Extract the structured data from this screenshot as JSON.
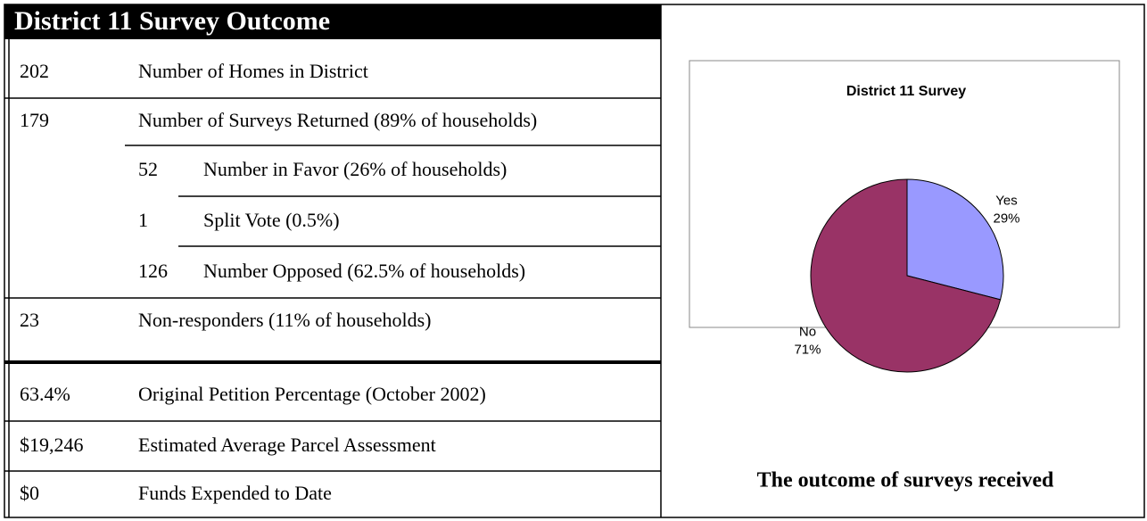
{
  "table": {
    "title": "District 11 Survey Outcome",
    "rows": [
      [
        "202",
        "Number of Homes in District"
      ],
      [
        "179",
        "Number of Surveys Returned (89% of households)"
      ],
      [
        "52",
        "Number in Favor (26% of households)"
      ],
      [
        "1",
        "Split Vote (0.5%)"
      ],
      [
        "126",
        "Number Opposed (62.5% of households)"
      ],
      [
        "23",
        "Non-responders (11% of households)"
      ],
      [
        "63.4%",
        "Original Petition Percentage (October 2002)"
      ],
      [
        "$19,246",
        "Estimated Average Parcel Assessment"
      ],
      [
        "$0",
        "Funds Expended to Date"
      ]
    ]
  },
  "chart_data": {
    "type": "pie",
    "title": "District 11 Survey",
    "categories": [
      "Yes",
      "No"
    ],
    "values": [
      29,
      71
    ],
    "value_labels": [
      "29%",
      "71%"
    ],
    "colors": [
      "#9999ff",
      "#993366"
    ]
  },
  "caption": "The outcome of surveys received"
}
